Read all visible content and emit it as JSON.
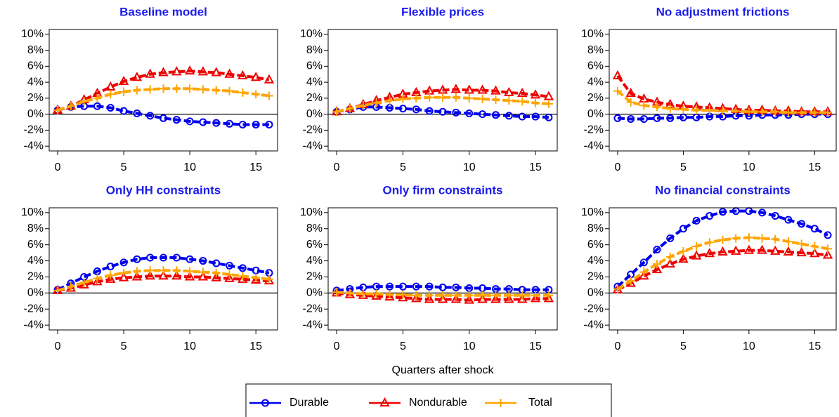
{
  "chart_data": [
    {
      "type": "line",
      "title": "Baseline model",
      "x": [
        0,
        1,
        2,
        3,
        4,
        5,
        6,
        7,
        8,
        9,
        10,
        11,
        12,
        13,
        14,
        15,
        16
      ],
      "xlim": [
        -0.64,
        16.64
      ],
      "xticks": [
        0,
        5,
        10,
        15
      ],
      "ylim": [
        -4.6,
        10.6
      ],
      "yticks": [
        {
          "value": -4,
          "label": "-4%"
        },
        {
          "value": -2,
          "label": "-2%"
        },
        {
          "value": 0,
          "label": "0%"
        },
        {
          "value": 2,
          "label": "2%"
        },
        {
          "value": 4,
          "label": "4%"
        },
        {
          "value": 6,
          "label": "6%"
        },
        {
          "value": 8,
          "label": "8%"
        },
        {
          "value": 10,
          "label": "10%"
        }
      ],
      "hline": 0,
      "series": [
        {
          "name": "Durable",
          "color": "#0000ee",
          "marker": "circle",
          "values": [
            0.5,
            0.9,
            1.0,
            1.0,
            0.8,
            0.4,
            0.1,
            -0.2,
            -0.5,
            -0.7,
            -0.9,
            -1.0,
            -1.1,
            -1.2,
            -1.3,
            -1.3,
            -1.3
          ]
        },
        {
          "name": "Nondurable",
          "color": "#ee0000",
          "marker": "triangle",
          "values": [
            0.5,
            1.0,
            1.8,
            2.6,
            3.4,
            4.1,
            4.6,
            5.0,
            5.2,
            5.3,
            5.4,
            5.3,
            5.2,
            5.0,
            4.8,
            4.6,
            4.3
          ]
        },
        {
          "name": "Total",
          "color": "#ffa500",
          "marker": "plus",
          "values": [
            0.5,
            1.0,
            1.6,
            2.0,
            2.5,
            2.8,
            3.0,
            3.1,
            3.2,
            3.2,
            3.2,
            3.1,
            3.0,
            2.9,
            2.7,
            2.5,
            2.3
          ]
        }
      ]
    },
    {
      "type": "line",
      "title": "Flexible prices",
      "x": [
        0,
        1,
        2,
        3,
        4,
        5,
        6,
        7,
        8,
        9,
        10,
        11,
        12,
        13,
        14,
        15,
        16
      ],
      "xlim": [
        -0.64,
        16.64
      ],
      "xticks": [
        0,
        5,
        10,
        15
      ],
      "ylim": [
        -4.6,
        10.6
      ],
      "yticks": [
        {
          "value": -4,
          "label": "-4%"
        },
        {
          "value": -2,
          "label": "-2%"
        },
        {
          "value": 0,
          "label": "0%"
        },
        {
          "value": 2,
          "label": "2%"
        },
        {
          "value": 4,
          "label": "4%"
        },
        {
          "value": 6,
          "label": "6%"
        },
        {
          "value": 8,
          "label": "8%"
        },
        {
          "value": 10,
          "label": "10%"
        }
      ],
      "hline": 0,
      "series": [
        {
          "name": "Durable",
          "color": "#0000ee",
          "marker": "circle",
          "values": [
            0.3,
            0.6,
            0.9,
            0.9,
            0.8,
            0.7,
            0.6,
            0.4,
            0.3,
            0.2,
            0.1,
            0.0,
            -0.1,
            -0.2,
            -0.3,
            -0.3,
            -0.4
          ]
        },
        {
          "name": "Nondurable",
          "color": "#ee0000",
          "marker": "triangle",
          "values": [
            0.3,
            0.7,
            1.2,
            1.7,
            2.1,
            2.5,
            2.7,
            2.9,
            3.0,
            3.1,
            3.0,
            3.0,
            2.9,
            2.7,
            2.6,
            2.4,
            2.2
          ]
        },
        {
          "name": "Total",
          "color": "#ffa500",
          "marker": "plus",
          "values": [
            0.3,
            0.7,
            1.1,
            1.4,
            1.7,
            1.9,
            2.0,
            2.1,
            2.1,
            2.1,
            2.0,
            1.9,
            1.8,
            1.7,
            1.6,
            1.4,
            1.3
          ]
        }
      ]
    },
    {
      "type": "line",
      "title": "No adjustment frictions",
      "x": [
        0,
        1,
        2,
        3,
        4,
        5,
        6,
        7,
        8,
        9,
        10,
        11,
        12,
        13,
        14,
        15,
        16
      ],
      "xlim": [
        -0.64,
        16.64
      ],
      "xticks": [
        0,
        5,
        10,
        15
      ],
      "ylim": [
        -4.6,
        10.6
      ],
      "yticks": [
        {
          "value": -4,
          "label": "-4%"
        },
        {
          "value": -2,
          "label": "-2%"
        },
        {
          "value": 0,
          "label": "0%"
        },
        {
          "value": 2,
          "label": "2%"
        },
        {
          "value": 4,
          "label": "4%"
        },
        {
          "value": 6,
          "label": "6%"
        },
        {
          "value": 8,
          "label": "8%"
        },
        {
          "value": 10,
          "label": "10%"
        }
      ],
      "hline": 0,
      "series": [
        {
          "name": "Durable",
          "color": "#0000ee",
          "marker": "circle",
          "values": [
            -0.5,
            -0.6,
            -0.6,
            -0.5,
            -0.5,
            -0.4,
            -0.4,
            -0.3,
            -0.3,
            -0.2,
            -0.2,
            -0.1,
            -0.1,
            -0.1,
            0,
            0,
            0
          ]
        },
        {
          "name": "Nondurable",
          "color": "#ee0000",
          "marker": "triangle",
          "values": [
            4.8,
            2.6,
            1.9,
            1.5,
            1.2,
            1.0,
            0.9,
            0.8,
            0.7,
            0.6,
            0.5,
            0.5,
            0.4,
            0.4,
            0.3,
            0.3,
            0.3
          ]
        },
        {
          "name": "Total",
          "color": "#ffa500",
          "marker": "plus",
          "values": [
            2.9,
            1.5,
            1.1,
            0.9,
            0.7,
            0.6,
            0.5,
            0.5,
            0.4,
            0.4,
            0.3,
            0.3,
            0.3,
            0.2,
            0.2,
            0.2,
            0.2
          ]
        }
      ]
    },
    {
      "type": "line",
      "title": "Only HH constraints",
      "x": [
        0,
        1,
        2,
        3,
        4,
        5,
        6,
        7,
        8,
        9,
        10,
        11,
        12,
        13,
        14,
        15,
        16
      ],
      "xlim": [
        -0.64,
        16.64
      ],
      "xticks": [
        0,
        5,
        10,
        15
      ],
      "ylim": [
        -4.6,
        10.6
      ],
      "yticks": [
        {
          "value": -4,
          "label": "-4%"
        },
        {
          "value": -2,
          "label": "-2%"
        },
        {
          "value": 0,
          "label": "0%"
        },
        {
          "value": 2,
          "label": "2%"
        },
        {
          "value": 4,
          "label": "4%"
        },
        {
          "value": 6,
          "label": "6%"
        },
        {
          "value": 8,
          "label": "8%"
        },
        {
          "value": 10,
          "label": "10%"
        }
      ],
      "hline": 0,
      "series": [
        {
          "name": "Durable",
          "color": "#0000ee",
          "marker": "circle",
          "values": [
            0.4,
            1.2,
            2.0,
            2.7,
            3.3,
            3.8,
            4.2,
            4.4,
            4.4,
            4.4,
            4.2,
            4.0,
            3.7,
            3.4,
            3.1,
            2.8,
            2.5
          ]
        },
        {
          "name": "Nondurable",
          "color": "#ee0000",
          "marker": "triangle",
          "values": [
            0.3,
            0.6,
            1.0,
            1.4,
            1.7,
            1.9,
            2.0,
            2.1,
            2.1,
            2.1,
            2.0,
            2.0,
            1.9,
            1.8,
            1.7,
            1.6,
            1.5
          ]
        },
        {
          "name": "Total",
          "color": "#ffa500",
          "marker": "plus",
          "values": [
            0.3,
            0.8,
            1.3,
            1.8,
            2.2,
            2.5,
            2.7,
            2.8,
            2.8,
            2.8,
            2.7,
            2.6,
            2.5,
            2.3,
            2.1,
            1.9,
            1.7
          ]
        }
      ]
    },
    {
      "type": "line",
      "title": "Only firm constraints",
      "xlabel": "Quarters after shock",
      "x": [
        0,
        1,
        2,
        3,
        4,
        5,
        6,
        7,
        8,
        9,
        10,
        11,
        12,
        13,
        14,
        15,
        16
      ],
      "xlim": [
        -0.64,
        16.64
      ],
      "xticks": [
        0,
        5,
        10,
        15
      ],
      "ylim": [
        -4.6,
        10.6
      ],
      "yticks": [
        {
          "value": -4,
          "label": "-4%"
        },
        {
          "value": -2,
          "label": "-2%"
        },
        {
          "value": 0,
          "label": "0%"
        },
        {
          "value": 2,
          "label": "2%"
        },
        {
          "value": 4,
          "label": "4%"
        },
        {
          "value": 6,
          "label": "6%"
        },
        {
          "value": 8,
          "label": "8%"
        },
        {
          "value": 10,
          "label": "10%"
        }
      ],
      "hline": 0,
      "series": [
        {
          "name": "Durable",
          "color": "#0000ee",
          "marker": "circle",
          "values": [
            0.3,
            0.5,
            0.7,
            0.8,
            0.8,
            0.8,
            0.8,
            0.8,
            0.7,
            0.7,
            0.6,
            0.6,
            0.5,
            0.5,
            0.4,
            0.4,
            0.4
          ]
        },
        {
          "name": "Nondurable",
          "color": "#ee0000",
          "marker": "triangle",
          "values": [
            0,
            -0.2,
            -0.3,
            -0.4,
            -0.5,
            -0.6,
            -0.7,
            -0.8,
            -0.8,
            -0.8,
            -0.9,
            -0.8,
            -0.8,
            -0.8,
            -0.8,
            -0.7,
            -0.7
          ]
        },
        {
          "name": "Total",
          "color": "#ffa500",
          "marker": "plus",
          "values": [
            0.1,
            0,
            -0.1,
            -0.1,
            -0.2,
            -0.2,
            -0.3,
            -0.3,
            -0.3,
            -0.3,
            -0.3,
            -0.3,
            -0.3,
            -0.3,
            -0.3,
            -0.3,
            -0.3
          ]
        }
      ]
    },
    {
      "type": "line",
      "title": "No financial constraints",
      "x": [
        0,
        1,
        2,
        3,
        4,
        5,
        6,
        7,
        8,
        9,
        10,
        11,
        12,
        13,
        14,
        15,
        16
      ],
      "xlim": [
        -0.64,
        16.64
      ],
      "xticks": [
        0,
        5,
        10,
        15
      ],
      "ylim": [
        -4.6,
        10.6
      ],
      "yticks": [
        {
          "value": -4,
          "label": "-4%"
        },
        {
          "value": -2,
          "label": "-2%"
        },
        {
          "value": 0,
          "label": "0%"
        },
        {
          "value": 2,
          "label": "2%"
        },
        {
          "value": 4,
          "label": "4%"
        },
        {
          "value": 6,
          "label": "6%"
        },
        {
          "value": 8,
          "label": "8%"
        },
        {
          "value": 10,
          "label": "10%"
        }
      ],
      "hline": 0,
      "series": [
        {
          "name": "Durable",
          "color": "#0000ee",
          "marker": "circle",
          "values": [
            0.8,
            2.3,
            3.8,
            5.4,
            6.8,
            8.0,
            9.0,
            9.6,
            10.1,
            10.2,
            10.2,
            10.0,
            9.6,
            9.1,
            8.6,
            8.0,
            7.2
          ]
        },
        {
          "name": "Nondurable",
          "color": "#ee0000",
          "marker": "triangle",
          "values": [
            0.4,
            1.2,
            2.1,
            2.9,
            3.6,
            4.2,
            4.6,
            4.9,
            5.1,
            5.2,
            5.3,
            5.3,
            5.2,
            5.1,
            5.0,
            4.9,
            4.7
          ]
        },
        {
          "name": "Total",
          "color": "#ffa500",
          "marker": "plus",
          "values": [
            0.5,
            1.5,
            2.6,
            3.6,
            4.5,
            5.2,
            5.8,
            6.3,
            6.6,
            6.8,
            6.9,
            6.8,
            6.7,
            6.4,
            6.1,
            5.8,
            5.5
          ]
        }
      ]
    }
  ]
}
